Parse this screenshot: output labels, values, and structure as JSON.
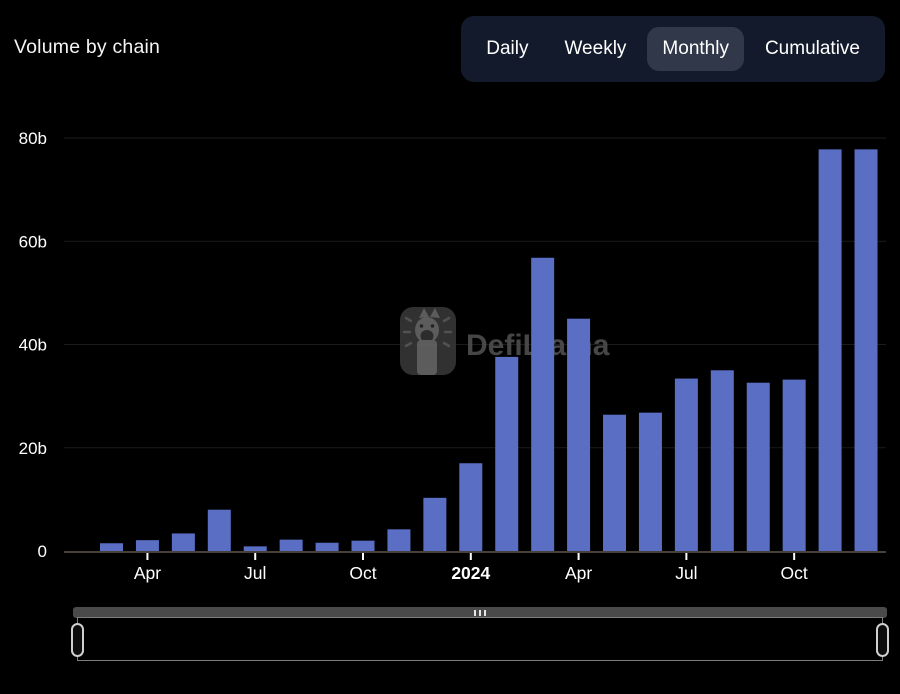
{
  "header": {
    "title": "Volume by chain",
    "tabs": [
      {
        "label": "Daily",
        "selected": false
      },
      {
        "label": "Weekly",
        "selected": false
      },
      {
        "label": "Monthly",
        "selected": true
      },
      {
        "label": "Cumulative",
        "selected": false
      }
    ]
  },
  "watermark": {
    "text": "DefiLlama",
    "icon": "defillama-llama-logo"
  },
  "chart_data": {
    "type": "bar",
    "title": "Volume by chain (Monthly)",
    "x": [
      "Mar 2023",
      "Apr 2023",
      "May 2023",
      "Jun 2023",
      "Jul 2023",
      "Aug 2023",
      "Sep 2023",
      "Oct 2023",
      "Nov 2023",
      "Dec 2023",
      "Jan 2024",
      "Feb 2024",
      "Mar 2024",
      "Apr 2024",
      "May 2024",
      "Jun 2024",
      "Jul 2024",
      "Aug 2024",
      "Sep 2024",
      "Oct 2024",
      "Nov 2024",
      "Dec 2024"
    ],
    "values": [
      1.5,
      2.1,
      3.4,
      8.0,
      0.9,
      2.2,
      1.6,
      2.0,
      4.2,
      10.3,
      17.0,
      37.6,
      56.8,
      45.0,
      26.4,
      26.8,
      33.4,
      35.0,
      32.6,
      33.2,
      77.8,
      77.8
    ],
    "value_unit": "billions USD",
    "ylabel": "",
    "xlabel": "",
    "ylim": [
      0,
      80
    ],
    "yticks": [
      "0",
      "20b",
      "40b",
      "60b",
      "80b"
    ],
    "ytick_values": [
      0,
      20,
      40,
      60,
      80
    ],
    "xticks": [
      {
        "index": 1,
        "label": "Apr",
        "bold": false
      },
      {
        "index": 4,
        "label": "Jul",
        "bold": false
      },
      {
        "index": 7,
        "label": "Oct",
        "bold": false
      },
      {
        "index": 10,
        "label": "2024",
        "bold": true
      },
      {
        "index": 13,
        "label": "Apr",
        "bold": false
      },
      {
        "index": 16,
        "label": "Jul",
        "bold": false
      },
      {
        "index": 19,
        "label": "Oct",
        "bold": false
      }
    ],
    "grid": true,
    "legend": false,
    "bar_color": "#5a6ec4"
  },
  "colors": {
    "background": "#000000",
    "bar": "#5a6ec4",
    "tabbar_bg": "#121a2b",
    "tab_selected_bg": "#303849",
    "gridline": "#1b1b1b",
    "axis_line": "#474139",
    "text": "#ffffff",
    "watermark": "#4c4c4e",
    "slider_track": "#4a4a4a"
  }
}
